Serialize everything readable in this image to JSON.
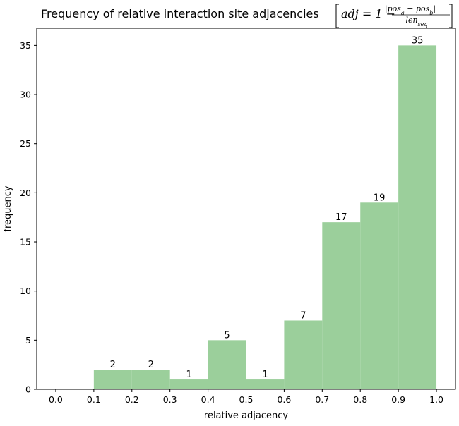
{
  "chart_data": {
    "type": "bar",
    "title": {
      "prefix": "Frequency of relative interaction site adjacencies",
      "formula": {
        "lhs": "adj = 1 −",
        "numerator": "|pos_a − pos_b|",
        "numerator_parts": {
          "bar_open": "|",
          "p1": "pos",
          "s1": "a",
          "minus": " − ",
          "p2": "pos",
          "s2": "b",
          "bar_close": "|"
        },
        "denominator": "len_seq",
        "denominator_parts": {
          "base": "len",
          "sub": "seq"
        }
      }
    },
    "xlabel": "relative adjacency",
    "ylabel": "frequency",
    "xlim": [
      -0.05,
      1.05
    ],
    "ylim": [
      0,
      36.75
    ],
    "xticks": [
      "0.0",
      "0.1",
      "0.2",
      "0.3",
      "0.4",
      "0.5",
      "0.6",
      "0.7",
      "0.8",
      "0.9",
      "1.0"
    ],
    "yticks": [
      0,
      5,
      10,
      15,
      20,
      25,
      30,
      35
    ],
    "grid": false,
    "bar_color": "#9bcf9b",
    "bins": [
      {
        "start": 0.0,
        "end": 0.1,
        "value": 0,
        "label": ""
      },
      {
        "start": 0.1,
        "end": 0.2,
        "value": 2,
        "label": "2"
      },
      {
        "start": 0.2,
        "end": 0.3,
        "value": 2,
        "label": "2"
      },
      {
        "start": 0.3,
        "end": 0.4,
        "value": 1,
        "label": "1"
      },
      {
        "start": 0.4,
        "end": 0.5,
        "value": 5,
        "label": "5"
      },
      {
        "start": 0.5,
        "end": 0.6,
        "value": 1,
        "label": "1"
      },
      {
        "start": 0.6,
        "end": 0.7,
        "value": 7,
        "label": "7"
      },
      {
        "start": 0.7,
        "end": 0.8,
        "value": 17,
        "label": "17"
      },
      {
        "start": 0.8,
        "end": 0.9,
        "value": 19,
        "label": "19"
      },
      {
        "start": 0.9,
        "end": 1.0,
        "value": 35,
        "label": "35"
      }
    ]
  }
}
